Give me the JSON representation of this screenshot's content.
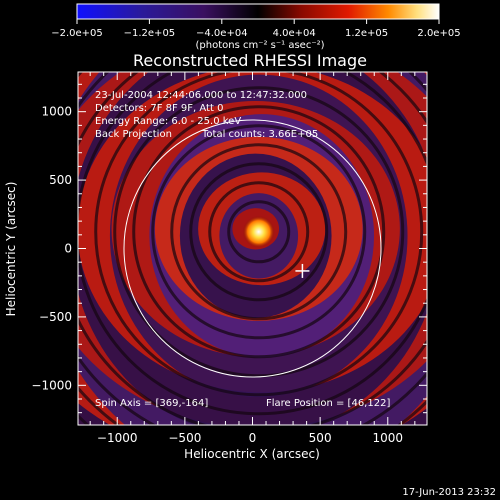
{
  "chart_data": {
    "type": "heatmap",
    "title": "Reconstructed RHESSI Image",
    "xlabel": "Heliocentric X (arcsec)",
    "ylabel": "Heliocentric Y (arcsec)",
    "xlim": [
      -1290,
      1290
    ],
    "ylim": [
      -1290,
      1290
    ],
    "xticks": [
      -1000,
      -500,
      0,
      500,
      1000
    ],
    "yticks": [
      1000,
      500,
      0,
      -500,
      -1000
    ],
    "xtick_labels": [
      "−1000",
      "−500",
      "0",
      "500",
      "1000"
    ],
    "ytick_labels": [
      "1000",
      "500",
      "0",
      "−500",
      "−1000"
    ],
    "colorbar": {
      "range": [
        -200000,
        200000
      ],
      "ticks": [
        -200000,
        -120000,
        -40000,
        40000,
        120000,
        200000
      ],
      "tick_labels": [
        "−2.0e+05",
        "−1.2e+05",
        "−4.0e+04",
        "4.0e+04",
        "1.2e+05",
        "2.0e+05"
      ],
      "unit_label": "(photons cm⁻² s⁻¹ asec⁻²)",
      "colors": [
        "#1010ff",
        "#2a1a9a",
        "#3a1060",
        "#000000",
        "#8a0a00",
        "#e01a00",
        "#ff8a00",
        "#ffe080",
        "#ffffff"
      ]
    },
    "annotations": {
      "date_range": "23-Jul-2004 12:44:06.000 to 12:47:32.000",
      "detectors": "Detectors: 7F 8F 9F, Att 0",
      "energy": "Energy Range: 6.0 - 25.0 keV",
      "method": "Back Projection",
      "counts": "Total counts: 3.66E+05",
      "spin_axis": "Spin Axis = [369,-164]",
      "flare_position": "Flare Position = [46,122]"
    },
    "solar_limb_radius": 950,
    "flare_center": [
      46,
      122
    ],
    "spin_axis": [
      369,
      -164
    ],
    "grid": false
  },
  "footer": {
    "timestamp": "17-Jun-2013 23:32"
  }
}
